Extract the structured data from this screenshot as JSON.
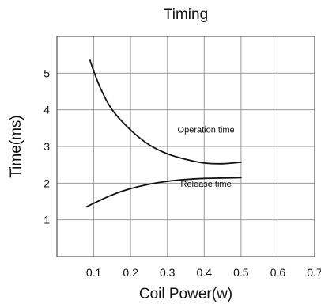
{
  "chart_data": {
    "type": "line",
    "title": "Timing",
    "xlabel": "Coil Power(w)",
    "ylabel": "Time(ms)",
    "xlim": [
      0,
      0.7
    ],
    "ylim": [
      0,
      6
    ],
    "x_ticks": [
      "0.1",
      "0.2",
      "0.3",
      "0.4",
      "0.5",
      "0.6",
      "0.7"
    ],
    "y_ticks": [
      "1",
      "2",
      "3",
      "4",
      "5"
    ],
    "grid": true,
    "legend": "none",
    "line_color": "#111111",
    "series": [
      {
        "name": "Operation time",
        "x": [
          0.09,
          0.1,
          0.12,
          0.15,
          0.2,
          0.25,
          0.3,
          0.35,
          0.4,
          0.45,
          0.5
        ],
        "y": [
          5.35,
          5.05,
          4.55,
          4.0,
          3.45,
          3.05,
          2.8,
          2.65,
          2.55,
          2.53,
          2.57
        ]
      },
      {
        "name": "Release time",
        "x": [
          0.08,
          0.1,
          0.15,
          0.2,
          0.25,
          0.3,
          0.35,
          0.4,
          0.45,
          0.5
        ],
        "y": [
          1.35,
          1.45,
          1.68,
          1.85,
          1.97,
          2.05,
          2.1,
          2.13,
          2.14,
          2.15
        ]
      }
    ],
    "annotations": [
      {
        "text": "Operation time",
        "x": 0.405,
        "y": 3.38
      },
      {
        "text": "Release time",
        "x": 0.405,
        "y": 1.9
      }
    ]
  }
}
